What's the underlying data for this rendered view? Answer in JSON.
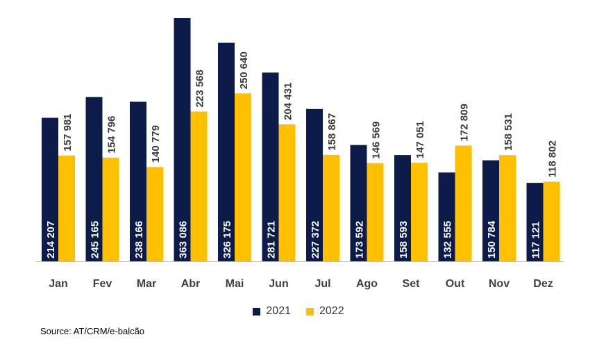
{
  "chart_data": {
    "type": "bar",
    "categories": [
      "Jan",
      "Fev",
      "Mar",
      "Abr",
      "Mai",
      "Jun",
      "Jul",
      "Ago",
      "Set",
      "Out",
      "Nov",
      "Dez"
    ],
    "series": [
      {
        "name": "2021",
        "color": "#0d1b4b",
        "values": [
          214207,
          245165,
          238166,
          363086,
          326175,
          281721,
          227372,
          173592,
          158593,
          132555,
          150784,
          117121
        ],
        "labels": [
          "214 207",
          "245 165",
          "238 166",
          "363 086",
          "326 175",
          "281 721",
          "227 372",
          "173 592",
          "158 593",
          "132 555",
          "150 784",
          "117 121"
        ]
      },
      {
        "name": "2022",
        "color": "#ffc000",
        "values": [
          157981,
          154796,
          140779,
          223568,
          250640,
          204431,
          158867,
          146569,
          147051,
          172809,
          158531,
          118802
        ],
        "labels": [
          "157 981",
          "154 796",
          "140 779",
          "223 568",
          "250 640",
          "204 431",
          "158 867",
          "146 569",
          "147 051",
          "172 809",
          "158 531",
          "118 802"
        ]
      }
    ],
    "legend": "bottom-center",
    "grid": false
  },
  "source": "Source: AT/CRM/e-balcão"
}
